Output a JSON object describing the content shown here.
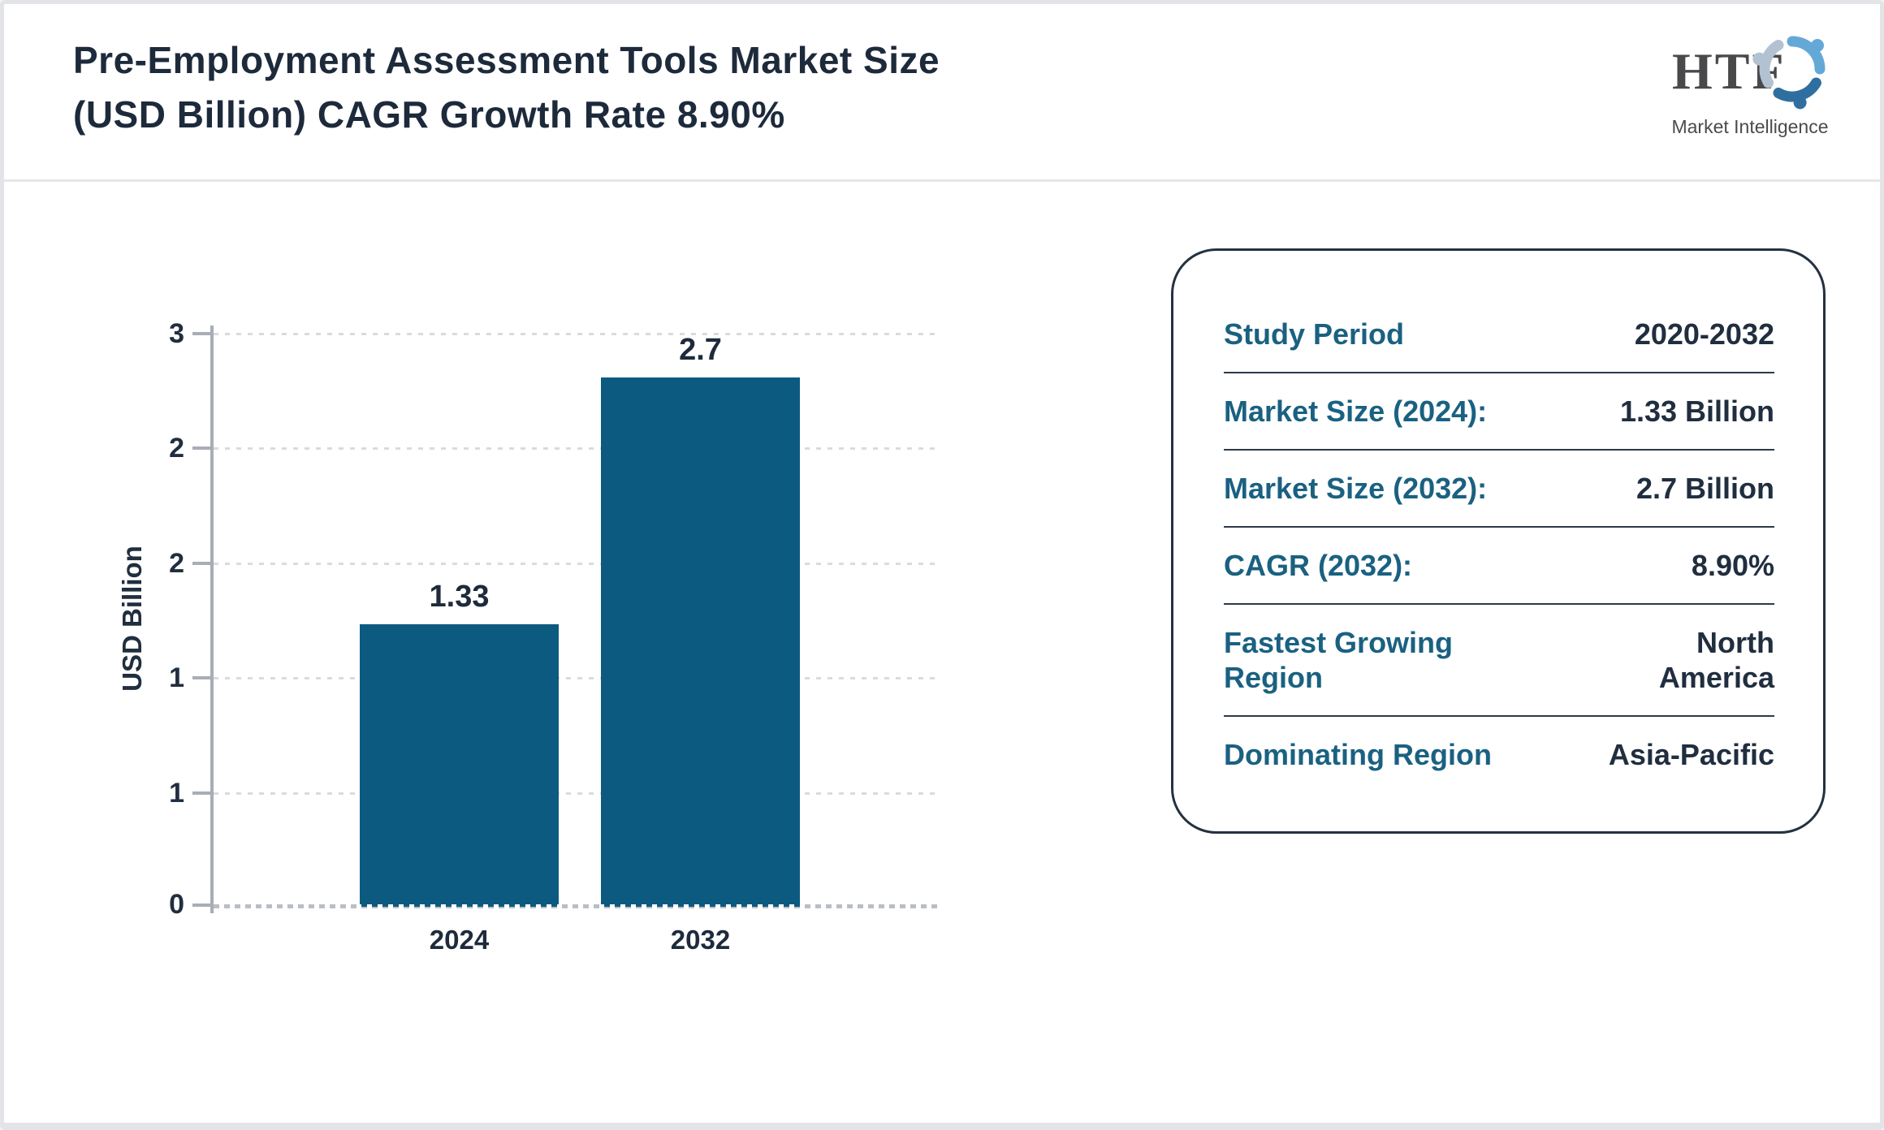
{
  "header": {
    "title_line1": "Pre-Employment Assessment Tools Market Size",
    "title_line2": "(USD Billion) CAGR Growth Rate 8.90%"
  },
  "logo": {
    "name": "HTF",
    "subtitle": "Market Intelligence",
    "emblem_colors": {
      "top": "#64a8d8",
      "left": "#b3c2d0",
      "bottom": "#2f6fa0"
    }
  },
  "chart_data": {
    "type": "bar",
    "categories": [
      "2024",
      "2032"
    ],
    "values": [
      1.33,
      2.7
    ],
    "bar_labels": [
      "1.33",
      "2.7"
    ],
    "ylabel": "USD Billion",
    "ylim": [
      0,
      2.7
    ],
    "ytick_labels_bottom_to_top": [
      "0",
      "1",
      "1",
      "2",
      "2",
      "3"
    ],
    "grid": "horizontal dotted",
    "legend": "none",
    "bar_color": "#0d5a80"
  },
  "info_card": {
    "rows": [
      {
        "label": "Study Period",
        "value": "2020-2032"
      },
      {
        "label": "Market Size (2024):",
        "value": "1.33 Billion"
      },
      {
        "label": "Market Size (2032):",
        "value": "2.7 Billion"
      },
      {
        "label": "CAGR (2032):",
        "value": "8.90%"
      },
      {
        "label": "Fastest Growing Region",
        "value": "North America"
      },
      {
        "label": "Dominating Region",
        "value": "Asia-Pacific"
      }
    ]
  },
  "colors": {
    "title_navy": "#1d2a3b",
    "value_navy": "#202e3f",
    "label_teal": "#1a6181",
    "bar_blue": "#0d5a80",
    "axis_gray": "#a8adb6",
    "grid_gray": "#d9dbde",
    "frame_gray": "#e2e4e8"
  }
}
